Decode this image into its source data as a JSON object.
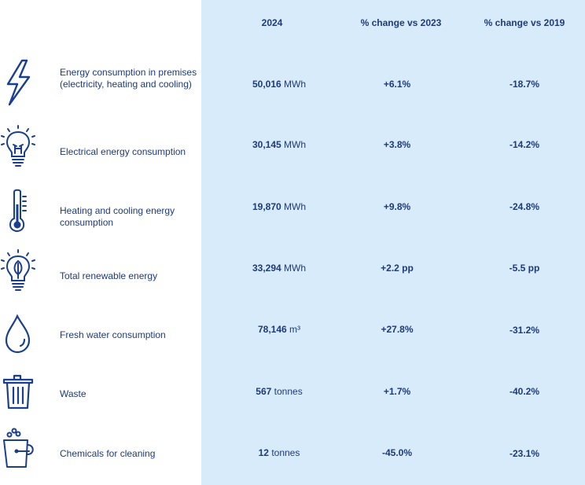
{
  "header": {
    "col_2024": "2024",
    "col_vs2023": "% change vs 2023",
    "col_vs2019": "% change vs 2019"
  },
  "rows": [
    {
      "icon": "lightning-icon",
      "label": "Energy consumption in premises (electricity, heating and cooling)",
      "value": "50,016",
      "unit": "MWh",
      "vs2023": "+6.1%",
      "vs2019": "-18.7%"
    },
    {
      "icon": "lightbulb-icon",
      "label": "Electrical energy consumption",
      "value": "30,145",
      "unit": "MWh",
      "vs2023": "+3.8%",
      "vs2019": "-14.2%"
    },
    {
      "icon": "thermometer-icon",
      "label": "Heating and cooling energy consumption",
      "value": "19,870",
      "unit": "MWh",
      "vs2023": "+9.8%",
      "vs2019": "-24.8%"
    },
    {
      "icon": "leaf-bulb-icon",
      "label": "Total renewable energy",
      "value": "33,294",
      "unit": "MWh",
      "vs2023": "+2.2 pp",
      "vs2019": "-5.5 pp"
    },
    {
      "icon": "water-drop-icon",
      "label": "Fresh water consumption",
      "value": "78,146",
      "unit": "m³",
      "vs2023": "+27.8%",
      "vs2019": "-31.2%"
    },
    {
      "icon": "trash-bin-icon",
      "label": "Waste",
      "value": "567",
      "unit": "tonnes",
      "vs2023": "+1.7%",
      "vs2019": "-40.2%"
    },
    {
      "icon": "cleaning-bucket-icon",
      "label": "Chemicals for cleaning",
      "value": "12",
      "unit": "tonnes",
      "vs2023": "-45.0%",
      "vs2019": "-23.1%"
    }
  ],
  "colors": {
    "text": "#1f3a7a",
    "shade": "#d7ebfa",
    "icon": "#1b3f8f"
  }
}
